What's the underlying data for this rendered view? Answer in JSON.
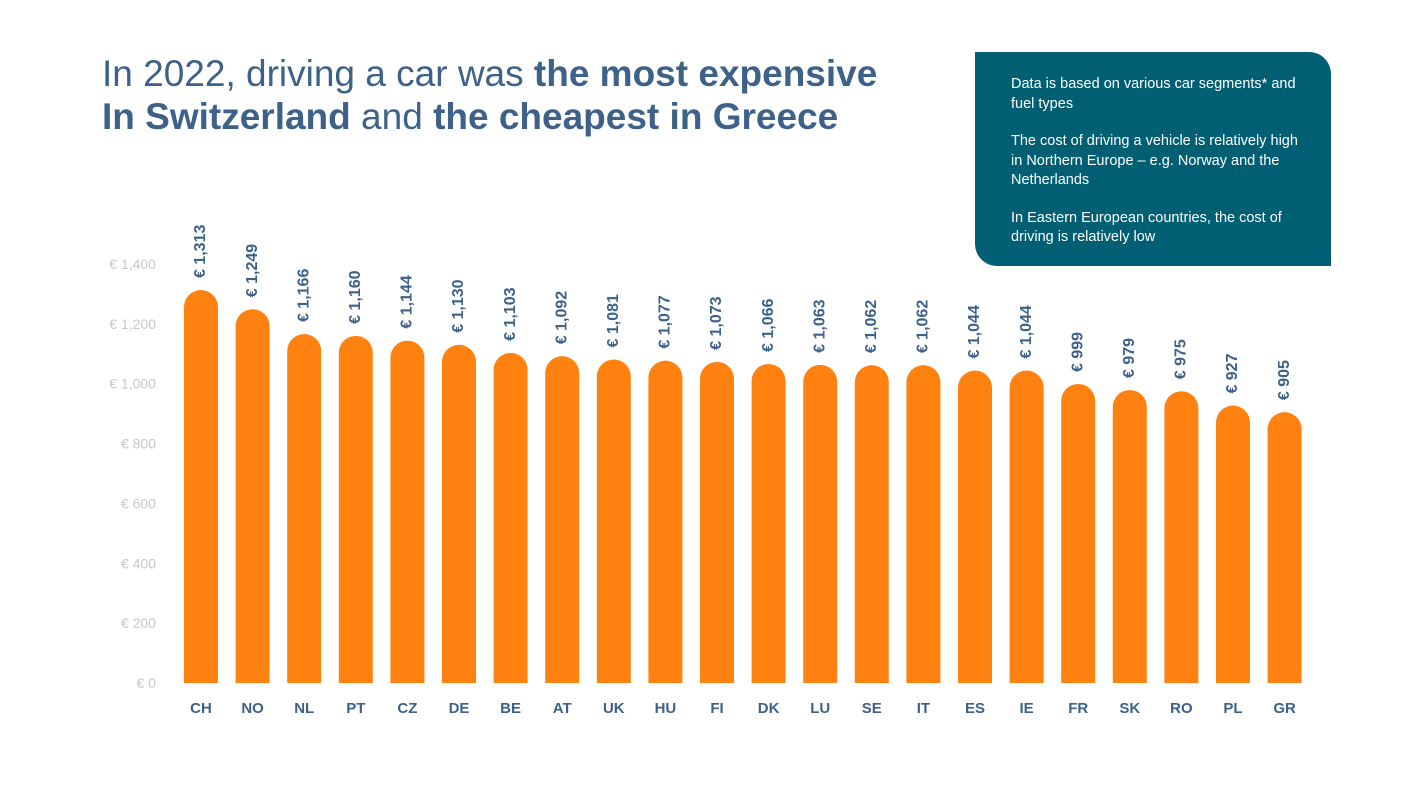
{
  "title": {
    "part1": "In 2022, driving a car was ",
    "part2_bold": "the most expensive",
    "part3_bold": "In Switzerland",
    "part4": " and ",
    "part5_bold": "the cheapest in Greece"
  },
  "info_box": {
    "paragraphs": [
      "Data is based on various car segments* and fuel types",
      "The cost of driving a vehicle is relatively high in Northern Europe – e.g. Norway and the Netherlands",
      "In Eastern European countries, the cost of driving is relatively low"
    ]
  },
  "colors": {
    "bar": "#ff8210",
    "label": "#3d6189",
    "axis_text": "#c8c8c8",
    "box_bg": "#005f73"
  },
  "chart_data": {
    "type": "bar",
    "title": "In 2022, driving a car was the most expensive In Switzerland and the cheapest in Greece",
    "categories": [
      "CH",
      "NO",
      "NL",
      "PT",
      "CZ",
      "DE",
      "BE",
      "AT",
      "UK",
      "HU",
      "FI",
      "DK",
      "LU",
      "SE",
      "IT",
      "ES",
      "IE",
      "FR",
      "SK",
      "RO",
      "PL",
      "GR"
    ],
    "values": [
      1313,
      1249,
      1166,
      1160,
      1144,
      1130,
      1103,
      1092,
      1081,
      1077,
      1073,
      1066,
      1063,
      1062,
      1062,
      1044,
      1044,
      999,
      979,
      975,
      927,
      905
    ],
    "data_labels": [
      "€ 1,313",
      "€ 1,249",
      "€ 1,166",
      "€ 1,160",
      "€ 1,144",
      "€ 1,130",
      "€ 1,103",
      "€ 1,092",
      "€ 1,081",
      "€ 1,077",
      "€ 1,073",
      "€ 1,066",
      "€ 1,063",
      "€ 1,062",
      "€ 1,062",
      "€ 1,044",
      "€ 1,044",
      "€ 999",
      "€ 979",
      "€ 975",
      "€ 927",
      "€ 905"
    ],
    "y_ticks": [
      0,
      200,
      400,
      600,
      800,
      1000,
      1200,
      1400
    ],
    "y_tick_labels": [
      "€ 0",
      "€ 200",
      "€ 400",
      "€ 600",
      "€ 800",
      "€ 1,000",
      "€ 1,200",
      "€ 1,400"
    ],
    "ylim": [
      0,
      1400
    ],
    "xlabel": "",
    "ylabel": "",
    "grid": false,
    "legend": "none"
  }
}
